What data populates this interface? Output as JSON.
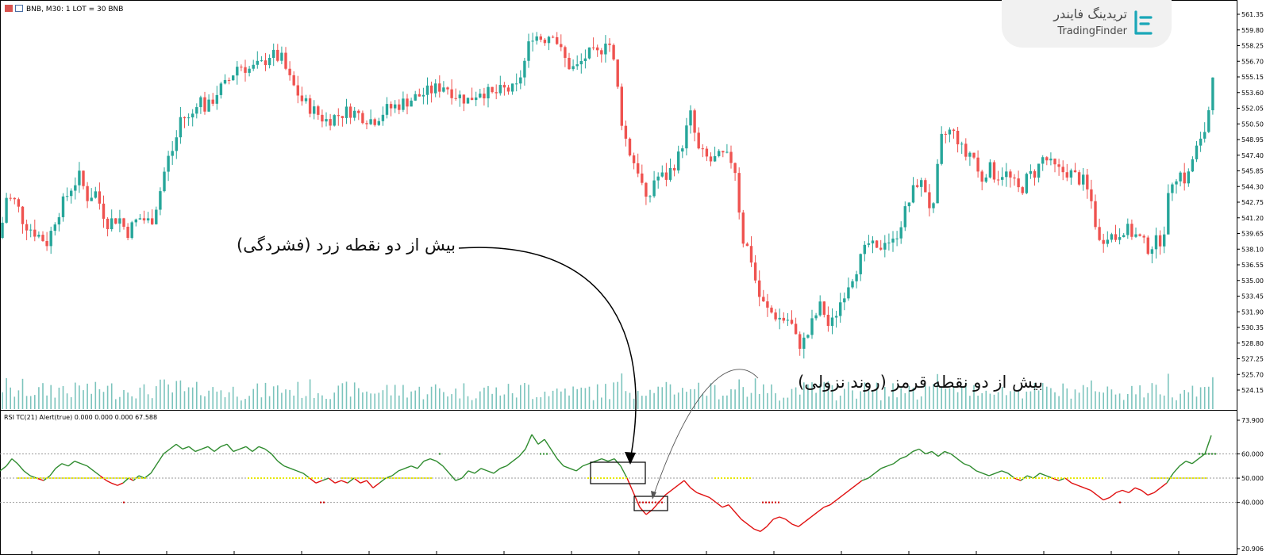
{
  "header": {
    "symbol_info": "BNB, M30:  1 LOT = 30 BNB",
    "indicator_info": "RSI TC(21) Alert(true) 0.000 0.000 0.000 67.588"
  },
  "brand": {
    "name_fa": "تریدینگ فایندر",
    "name_en": "TradingFinder"
  },
  "annotations": {
    "yellow_note": "بیش از دو نقطه زرد (فشردگی)",
    "red_note": "بیش از دو نقطه قرمز (روند نزولی)"
  },
  "colors": {
    "bull": "#26a69a",
    "bear": "#ef5350",
    "volume": "#7cc4bd",
    "rsi_up": "#2e8b2e",
    "rsi_down": "#e01010",
    "yellow_dots": "#e6e600",
    "red_dots": "#cc0000",
    "green_dots": "#2e8b2e"
  },
  "chart_data": [
    {
      "type": "candlestick",
      "title": "BNB, M30",
      "y_ticks": [
        "561.35",
        "559.80",
        "558.25",
        "556.70",
        "555.15",
        "553.60",
        "552.05",
        "550.50",
        "548.95",
        "547.40",
        "545.85",
        "544.30",
        "542.75",
        "541.20",
        "539.65",
        "538.10",
        "536.55",
        "535.00",
        "533.45",
        "531.90",
        "530.35",
        "528.80",
        "527.25",
        "525.70",
        "524.15"
      ],
      "ylim": [
        523.8,
        562.2
      ],
      "close_path": [
        [
          0,
          539.5
        ],
        [
          8,
          543.5
        ],
        [
          20,
          543.0
        ],
        [
          30,
          541.0
        ],
        [
          45,
          540.0
        ],
        [
          60,
          539.0
        ],
        [
          70,
          541.5
        ],
        [
          80,
          543.0
        ],
        [
          90,
          544.5
        ],
        [
          100,
          545.5
        ],
        [
          110,
          543.5
        ],
        [
          120,
          544.0
        ],
        [
          135,
          541.0
        ],
        [
          150,
          541.5
        ],
        [
          160,
          540.0
        ],
        [
          175,
          541.5
        ],
        [
          190,
          541.0
        ],
        [
          200,
          543.5
        ],
        [
          210,
          547.0
        ],
        [
          220,
          548.5
        ],
        [
          228,
          551.5
        ],
        [
          240,
          551.0
        ],
        [
          250,
          553.5
        ],
        [
          260,
          552.0
        ],
        [
          275,
          554.0
        ],
        [
          285,
          554.5
        ],
        [
          300,
          556.5
        ],
        [
          315,
          556.0
        ],
        [
          330,
          556.5
        ],
        [
          340,
          557.5
        ],
        [
          355,
          557.0
        ],
        [
          365,
          555.0
        ],
        [
          380,
          553.0
        ],
        [
          395,
          552.0
        ],
        [
          410,
          551.0
        ],
        [
          425,
          551.5
        ],
        [
          440,
          552.0
        ],
        [
          455,
          551.5
        ],
        [
          470,
          551.0
        ],
        [
          485,
          552.0
        ],
        [
          500,
          552.5
        ],
        [
          515,
          553.0
        ],
        [
          530,
          553.5
        ],
        [
          545,
          554.0
        ],
        [
          560,
          554.5
        ],
        [
          575,
          553.5
        ],
        [
          590,
          553.0
        ],
        [
          605,
          554.0
        ],
        [
          620,
          553.5
        ],
        [
          635,
          554.0
        ],
        [
          650,
          554.0
        ],
        [
          660,
          556.5
        ],
        [
          670,
          559.5
        ],
        [
          685,
          559.0
        ],
        [
          697,
          559.8
        ],
        [
          705,
          558.0
        ],
        [
          715,
          556.5
        ],
        [
          725,
          556.0
        ],
        [
          740,
          557.5
        ],
        [
          755,
          557.5
        ],
        [
          765,
          559.5
        ],
        [
          775,
          556.0
        ],
        [
          785,
          550.0
        ],
        [
          795,
          547.5
        ],
        [
          805,
          546.0
        ],
        [
          815,
          542.5
        ],
        [
          825,
          545.5
        ],
        [
          840,
          545.5
        ],
        [
          855,
          547.5
        ],
        [
          870,
          551.5
        ],
        [
          880,
          548.0
        ],
        [
          895,
          547.0
        ],
        [
          910,
          547.5
        ],
        [
          925,
          547.0
        ],
        [
          935,
          539.5
        ],
        [
          945,
          538.0
        ],
        [
          955,
          534.0
        ],
        [
          965,
          532.5
        ],
        [
          975,
          532.0
        ],
        [
          985,
          531.5
        ],
        [
          995,
          531.5
        ],
        [
          1005,
          529.0
        ],
        [
          1015,
          529.5
        ],
        [
          1025,
          531.5
        ],
        [
          1035,
          533.0
        ],
        [
          1045,
          530.5
        ],
        [
          1055,
          532.5
        ],
        [
          1065,
          534.5
        ],
        [
          1075,
          536.0
        ],
        [
          1085,
          537.5
        ],
        [
          1095,
          539.0
        ],
        [
          1105,
          538.0
        ],
        [
          1115,
          539.5
        ],
        [
          1125,
          539.0
        ],
        [
          1135,
          541.0
        ],
        [
          1145,
          543.0
        ],
        [
          1155,
          545.0
        ],
        [
          1165,
          544.5
        ],
        [
          1175,
          541.5
        ],
        [
          1185,
          549.0
        ],
        [
          1195,
          550.0
        ],
        [
          1205,
          549.5
        ],
        [
          1215,
          547.5
        ],
        [
          1225,
          548.0
        ],
        [
          1235,
          545.0
        ],
        [
          1245,
          546.5
        ],
        [
          1255,
          545.5
        ],
        [
          1265,
          546.0
        ],
        [
          1275,
          545.0
        ],
        [
          1285,
          544.0
        ],
        [
          1295,
          545.5
        ],
        [
          1305,
          546.0
        ],
        [
          1315,
          547.5
        ],
        [
          1325,
          546.5
        ],
        [
          1335,
          546.0
        ],
        [
          1345,
          546.0
        ],
        [
          1355,
          545.5
        ],
        [
          1365,
          545.0
        ],
        [
          1375,
          543.0
        ],
        [
          1385,
          539.0
        ],
        [
          1395,
          540.0
        ],
        [
          1405,
          539.5
        ],
        [
          1415,
          540.5
        ],
        [
          1425,
          540.0
        ],
        [
          1435,
          539.5
        ],
        [
          1445,
          538.5
        ],
        [
          1455,
          539.0
        ],
        [
          1465,
          539.5
        ],
        [
          1475,
          545.0
        ],
        [
          1485,
          546.0
        ],
        [
          1495,
          545.0
        ],
        [
          1505,
          548.0
        ],
        [
          1515,
          549.0
        ],
        [
          1525,
          553.0
        ],
        [
          1530,
          558.0
        ]
      ]
    },
    {
      "type": "line",
      "title": "RSI TC(21) Alert(true)",
      "y_ticks": [
        "73.900",
        "60.000",
        "50.000",
        "40.000",
        "20.906"
      ],
      "levels": [
        60,
        50,
        40
      ],
      "ylim": [
        20.906,
        73.9
      ],
      "points": [
        [
          0,
          53
        ],
        [
          8,
          55
        ],
        [
          15,
          58
        ],
        [
          22,
          56
        ],
        [
          30,
          53
        ],
        [
          38,
          51
        ],
        [
          46,
          50
        ],
        [
          55,
          49
        ],
        [
          63,
          51
        ],
        [
          70,
          54
        ],
        [
          78,
          56
        ],
        [
          86,
          55
        ],
        [
          94,
          57
        ],
        [
          102,
          56
        ],
        [
          110,
          55
        ],
        [
          118,
          53
        ],
        [
          126,
          51
        ],
        [
          134,
          49
        ],
        [
          140,
          48
        ],
        [
          148,
          47
        ],
        [
          155,
          48
        ],
        [
          162,
          50
        ],
        [
          168,
          49
        ],
        [
          175,
          51
        ],
        [
          182,
          50
        ],
        [
          190,
          52
        ],
        [
          198,
          56
        ],
        [
          206,
          60
        ],
        [
          214,
          62
        ],
        [
          222,
          64
        ],
        [
          230,
          62
        ],
        [
          238,
          63
        ],
        [
          246,
          61
        ],
        [
          254,
          62
        ],
        [
          262,
          63
        ],
        [
          270,
          61
        ],
        [
          278,
          63
        ],
        [
          286,
          64
        ],
        [
          294,
          61
        ],
        [
          302,
          62
        ],
        [
          310,
          63
        ],
        [
          318,
          61
        ],
        [
          326,
          63
        ],
        [
          334,
          62
        ],
        [
          342,
          60
        ],
        [
          350,
          57
        ],
        [
          358,
          55
        ],
        [
          366,
          54
        ],
        [
          374,
          53
        ],
        [
          382,
          52
        ],
        [
          390,
          50
        ],
        [
          398,
          48
        ],
        [
          406,
          49
        ],
        [
          414,
          50
        ],
        [
          422,
          48
        ],
        [
          430,
          49
        ],
        [
          438,
          48
        ],
        [
          446,
          50
        ],
        [
          454,
          48
        ],
        [
          462,
          49
        ],
        [
          470,
          46
        ],
        [
          478,
          48
        ],
        [
          486,
          50
        ],
        [
          494,
          51
        ],
        [
          502,
          53
        ],
        [
          510,
          54
        ],
        [
          518,
          55
        ],
        [
          526,
          54
        ],
        [
          534,
          57
        ],
        [
          542,
          58
        ],
        [
          550,
          57
        ],
        [
          558,
          55
        ],
        [
          566,
          52
        ],
        [
          574,
          49
        ],
        [
          582,
          50
        ],
        [
          590,
          53
        ],
        [
          598,
          52
        ],
        [
          606,
          54
        ],
        [
          614,
          53
        ],
        [
          622,
          52
        ],
        [
          630,
          54
        ],
        [
          638,
          55
        ],
        [
          646,
          57
        ],
        [
          654,
          59
        ],
        [
          662,
          62
        ],
        [
          670,
          68
        ],
        [
          678,
          64
        ],
        [
          686,
          66
        ],
        [
          694,
          62
        ],
        [
          702,
          58
        ],
        [
          710,
          55
        ],
        [
          718,
          54
        ],
        [
          726,
          53
        ],
        [
          734,
          55
        ],
        [
          742,
          56
        ],
        [
          750,
          57
        ],
        [
          758,
          58
        ],
        [
          766,
          57
        ],
        [
          774,
          58
        ],
        [
          782,
          55
        ],
        [
          790,
          50
        ],
        [
          798,
          44
        ],
        [
          806,
          38
        ],
        [
          814,
          35
        ],
        [
          822,
          37
        ],
        [
          830,
          40
        ],
        [
          838,
          43
        ],
        [
          846,
          45
        ],
        [
          854,
          47
        ],
        [
          862,
          49
        ],
        [
          870,
          46
        ],
        [
          878,
          44
        ],
        [
          886,
          43
        ],
        [
          894,
          42
        ],
        [
          902,
          40
        ],
        [
          910,
          38
        ],
        [
          918,
          39
        ],
        [
          926,
          36
        ],
        [
          934,
          33
        ],
        [
          942,
          31
        ],
        [
          950,
          29
        ],
        [
          958,
          28
        ],
        [
          966,
          30
        ],
        [
          974,
          33
        ],
        [
          982,
          34
        ],
        [
          990,
          33
        ],
        [
          998,
          31
        ],
        [
          1006,
          30
        ],
        [
          1014,
          32
        ],
        [
          1022,
          34
        ],
        [
          1030,
          36
        ],
        [
          1038,
          38
        ],
        [
          1046,
          39
        ],
        [
          1054,
          41
        ],
        [
          1062,
          43
        ],
        [
          1070,
          45
        ],
        [
          1078,
          47
        ],
        [
          1086,
          49
        ],
        [
          1094,
          50
        ],
        [
          1102,
          52
        ],
        [
          1110,
          54
        ],
        [
          1118,
          55
        ],
        [
          1126,
          56
        ],
        [
          1134,
          58
        ],
        [
          1142,
          59
        ],
        [
          1150,
          61
        ],
        [
          1158,
          62
        ],
        [
          1166,
          60
        ],
        [
          1174,
          61
        ],
        [
          1182,
          59
        ],
        [
          1190,
          61
        ],
        [
          1198,
          60
        ],
        [
          1206,
          58
        ],
        [
          1214,
          56
        ],
        [
          1222,
          55
        ],
        [
          1230,
          53
        ],
        [
          1238,
          52
        ],
        [
          1246,
          51
        ],
        [
          1254,
          52
        ],
        [
          1262,
          53
        ],
        [
          1270,
          52
        ],
        [
          1278,
          50
        ],
        [
          1286,
          49
        ],
        [
          1294,
          51
        ],
        [
          1302,
          50
        ],
        [
          1310,
          52
        ],
        [
          1318,
          51
        ],
        [
          1326,
          50
        ],
        [
          1334,
          49
        ],
        [
          1342,
          50
        ],
        [
          1350,
          48
        ],
        [
          1358,
          47
        ],
        [
          1366,
          46
        ],
        [
          1374,
          45
        ],
        [
          1382,
          43
        ],
        [
          1390,
          41
        ],
        [
          1398,
          42
        ],
        [
          1406,
          44
        ],
        [
          1414,
          45
        ],
        [
          1422,
          44
        ],
        [
          1430,
          46
        ],
        [
          1438,
          45
        ],
        [
          1446,
          43
        ],
        [
          1454,
          44
        ],
        [
          1462,
          46
        ],
        [
          1470,
          48
        ],
        [
          1478,
          52
        ],
        [
          1486,
          55
        ],
        [
          1494,
          57
        ],
        [
          1502,
          56
        ],
        [
          1510,
          58
        ],
        [
          1518,
          60
        ],
        [
          1526,
          67.6
        ]
      ]
    }
  ]
}
